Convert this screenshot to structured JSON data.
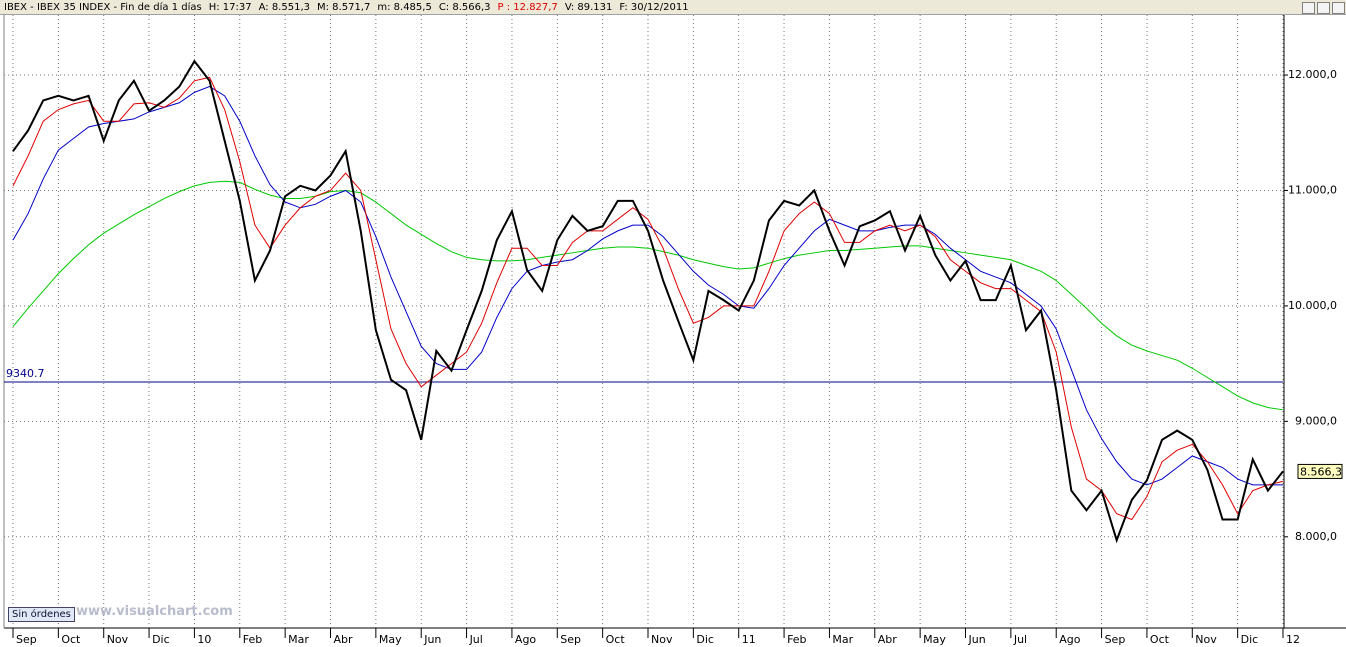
{
  "header": {
    "items": [
      {
        "text": "IBEX - IBEX 35 INDEX - Fin de día 1 días",
        "color": "#000000"
      },
      {
        "text": "H: 17:37",
        "color": "#000000"
      },
      {
        "text": "A: 8.551,3",
        "color": "#000000"
      },
      {
        "text": "M: 8.571,7",
        "color": "#000000"
      },
      {
        "text": "m: 8.485,5",
        "color": "#000000"
      },
      {
        "text": "C: 8.566,3",
        "color": "#000000"
      },
      {
        "text": "P : 12.827,7",
        "color": "#e00000"
      },
      {
        "text": "V: 89.131",
        "color": "#000000"
      },
      {
        "text": "F: 30/12/2011",
        "color": "#000000"
      }
    ]
  },
  "ui": {
    "orders_button": "Sin órdenes",
    "watermark": "www.visualchart.com"
  },
  "chart_data": {
    "type": "line",
    "categories": [
      "Sep",
      null,
      null,
      "Oct",
      null,
      null,
      "Nov",
      null,
      null,
      "Dic",
      null,
      null,
      "10",
      null,
      null,
      "Feb",
      null,
      null,
      "Mar",
      null,
      null,
      "Abr",
      null,
      null,
      "May",
      null,
      null,
      "Jun",
      null,
      null,
      "Jul",
      null,
      null,
      "Ago",
      null,
      null,
      "Sep",
      null,
      null,
      "Oct",
      null,
      null,
      "Nov",
      null,
      null,
      "Dic",
      null,
      null,
      "11",
      null,
      null,
      "Feb",
      null,
      null,
      "Mar",
      null,
      null,
      "Abr",
      null,
      null,
      "May",
      null,
      null,
      "Jun",
      null,
      null,
      "Jul",
      null,
      null,
      "Ago",
      null,
      null,
      "Sep",
      null,
      null,
      "Oct",
      null,
      null,
      "Nov",
      null,
      null,
      "Dic",
      null,
      null,
      "12"
    ],
    "series": [
      {
        "color": "#000000",
        "width": 2,
        "values": [
          11340,
          11520,
          11780,
          11820,
          11780,
          11820,
          11430,
          11780,
          11950,
          11690,
          11780,
          11900,
          12120,
          11950,
          11430,
          10910,
          10220,
          10480,
          10950,
          11040,
          11000,
          11130,
          11340,
          10650,
          9790,
          9360,
          9270,
          8840,
          9610,
          9440,
          9790,
          10130,
          10570,
          10820,
          10310,
          10130,
          10570,
          10780,
          10650,
          10690,
          10910,
          10910,
          10650,
          10220,
          9870,
          9530,
          10130,
          10050,
          9960,
          10220,
          10740,
          10910,
          10870,
          11000,
          10650,
          10350,
          10690,
          10740,
          10820,
          10480,
          10780,
          10440,
          10220,
          10390,
          10050,
          10050,
          10350,
          9790,
          9960,
          9270,
          8400,
          8230,
          8400,
          7970,
          8320,
          8490,
          8840,
          8920,
          8840,
          8580,
          8150,
          8150,
          8670,
          8400,
          8566.3
        ]
      },
      {
        "color": "#e00000",
        "width": 1,
        "values": [
          11040,
          11300,
          11600,
          11700,
          11750,
          11780,
          11600,
          11600,
          11750,
          11760,
          11720,
          11800,
          11950,
          11980,
          11700,
          11250,
          10700,
          10500,
          10700,
          10850,
          10950,
          11000,
          11150,
          11000,
          10400,
          9800,
          9500,
          9300,
          9400,
          9500,
          9600,
          9850,
          10200,
          10500,
          10500,
          10350,
          10350,
          10550,
          10650,
          10650,
          10750,
          10850,
          10750,
          10500,
          10150,
          9850,
          9900,
          10000,
          10000,
          10000,
          10300,
          10650,
          10800,
          10900,
          10800,
          10550,
          10550,
          10650,
          10700,
          10650,
          10700,
          10600,
          10400,
          10300,
          10200,
          10150,
          10150,
          10050,
          9950,
          9600,
          8950,
          8500,
          8400,
          8200,
          8150,
          8350,
          8650,
          8750,
          8800,
          8650,
          8450,
          8200,
          8400,
          8450,
          8480
        ]
      },
      {
        "color": "#0000c8",
        "width": 1,
        "values": [
          10570,
          10800,
          11100,
          11350,
          11450,
          11550,
          11580,
          11600,
          11620,
          11680,
          11720,
          11760,
          11850,
          11900,
          11820,
          11600,
          11300,
          11050,
          10900,
          10850,
          10880,
          10950,
          11000,
          10900,
          10600,
          10250,
          9950,
          9650,
          9500,
          9450,
          9450,
          9600,
          9900,
          10150,
          10300,
          10350,
          10380,
          10400,
          10480,
          10580,
          10650,
          10700,
          10700,
          10600,
          10450,
          10300,
          10180,
          10100,
          10000,
          9980,
          10150,
          10350,
          10500,
          10650,
          10750,
          10700,
          10650,
          10650,
          10680,
          10700,
          10700,
          10620,
          10500,
          10400,
          10300,
          10250,
          10200,
          10100,
          10000,
          9800,
          9450,
          9100,
          8850,
          8650,
          8500,
          8450,
          8500,
          8600,
          8700,
          8650,
          8600,
          8500,
          8450,
          8450,
          8450
        ]
      },
      {
        "color": "#00c800",
        "width": 1,
        "values": [
          9820,
          9980,
          10130,
          10280,
          10410,
          10530,
          10630,
          10710,
          10790,
          10860,
          10930,
          10990,
          11040,
          11070,
          11080,
          11070,
          11010,
          10960,
          10930,
          10930,
          10950,
          10990,
          11000,
          10980,
          10900,
          10800,
          10700,
          10620,
          10540,
          10470,
          10420,
          10400,
          10390,
          10390,
          10400,
          10420,
          10440,
          10460,
          10480,
          10500,
          10510,
          10510,
          10500,
          10470,
          10440,
          10400,
          10370,
          10340,
          10320,
          10330,
          10370,
          10410,
          10440,
          10460,
          10480,
          10480,
          10490,
          10500,
          10510,
          10520,
          10520,
          10500,
          10480,
          10460,
          10440,
          10420,
          10400,
          10350,
          10300,
          10220,
          10100,
          9980,
          9850,
          9740,
          9660,
          9610,
          9570,
          9530,
          9460,
          9380,
          9300,
          9220,
          9160,
          9120,
          9100
        ]
      }
    ],
    "ylim": [
      7210,
      12520
    ],
    "yticks": [
      {
        "value": 8000,
        "label": "8.000,0"
      },
      {
        "value": 9000,
        "label": "9.000,0"
      },
      {
        "value": 10000,
        "label": "10.000,0"
      },
      {
        "value": 11000,
        "label": "11.000,0"
      },
      {
        "value": 12000,
        "label": "12.000,0"
      }
    ],
    "grid": true,
    "hline": {
      "value": 9340.7,
      "color": "#00008b"
    },
    "last_label": {
      "value": 8566.3,
      "label": "8.566,3"
    }
  }
}
